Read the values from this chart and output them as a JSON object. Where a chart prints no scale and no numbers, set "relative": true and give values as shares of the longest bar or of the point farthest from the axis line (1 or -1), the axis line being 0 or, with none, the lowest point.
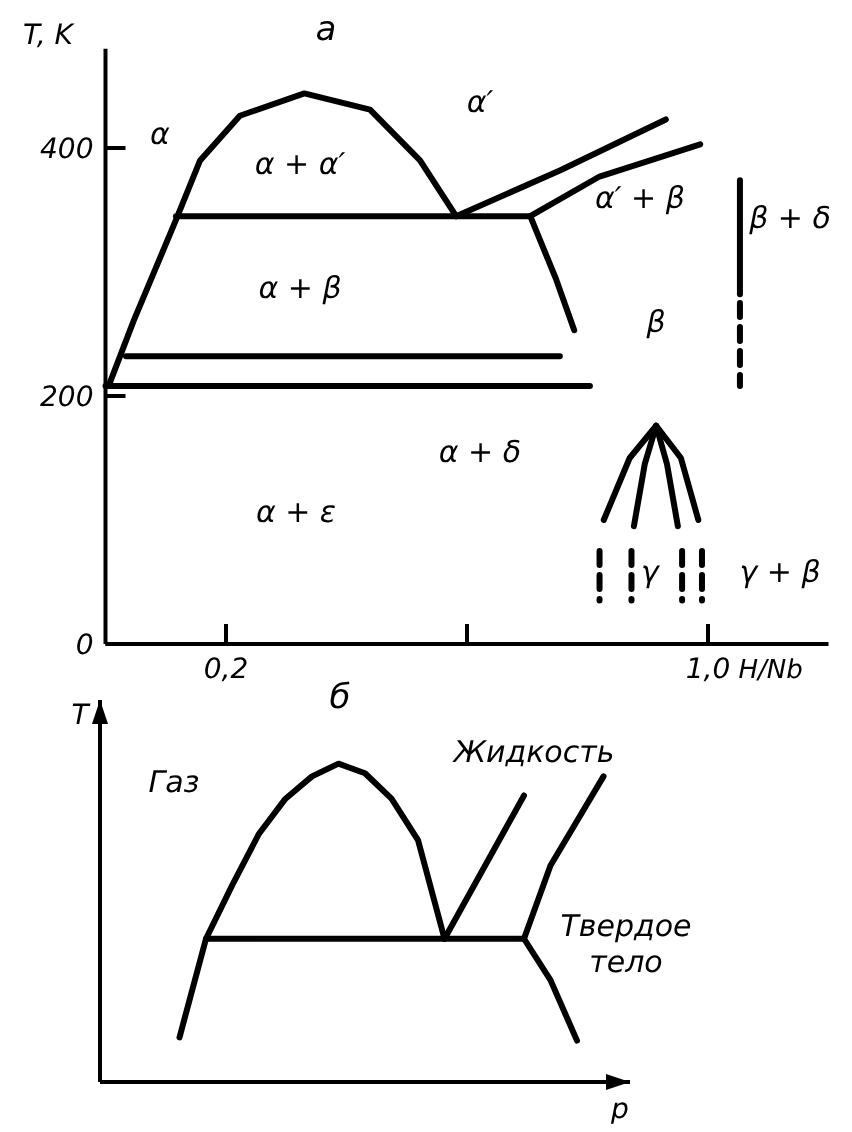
{
  "chart_data": [
    {
      "type": "line",
      "title": "а",
      "xlabel": "H/Nb",
      "ylabel": "T, K",
      "xlim": [
        0,
        1.2
      ],
      "ylim": [
        0,
        480
      ],
      "xticks": [
        {
          "value": 0.2,
          "label": "0,2"
        },
        {
          "value": 0.6,
          "label": null
        },
        {
          "value": 1.0,
          "label": "1,0"
        }
      ],
      "yticks": [
        0,
        200,
        400
      ],
      "marker": "none",
      "series": [
        {
          "color": "#000000",
          "line_style": "solid",
          "x": [
            0.0075,
            0.047,
            0.117,
            0.157,
            0.223,
            0.33,
            0.439,
            0.522,
            0.582
          ],
          "values": [
            211,
            261,
            342,
            390,
            426,
            444,
            431,
            390,
            345
          ]
        },
        {
          "color": "#000000",
          "line_style": "solid",
          "x": [
            0.117,
            0.705
          ],
          "values": [
            345,
            345
          ]
        },
        {
          "color": "#000000",
          "line_style": "solid",
          "x": [
            0.582,
            0.755,
            0.93
          ],
          "values": [
            345,
            382,
            423
          ]
        },
        {
          "color": "#000000",
          "line_style": "solid",
          "x": [
            0.705,
            0.82,
            0.987
          ],
          "values": [
            345,
            377,
            403
          ]
        },
        {
          "color": "#000000",
          "line_style": "solid",
          "x": [
            0.705,
            0.748,
            0.778
          ],
          "values": [
            345,
            294,
            253
          ]
        },
        {
          "color": "#000000",
          "line_style": "solid",
          "x": [
            0.034,
            0.754
          ],
          "values": [
            232,
            232
          ]
        },
        {
          "color": "#000000",
          "line_style": "solid",
          "x": [
            0,
            0.804
          ],
          "values": [
            208,
            208
          ]
        },
        {
          "color": "#000000",
          "line_style": "solid",
          "x": [
            1.053,
            1.053
          ],
          "values": [
            374,
            282
          ]
        },
        {
          "color": "#000000",
          "line_style": "dashed",
          "x": [
            1.053,
            1.053
          ],
          "values": [
            275,
            208
          ]
        },
        {
          "color": "#000000",
          "line_style": "solid",
          "x": [
            0.827,
            0.87,
            0.914,
            0.955,
            0.984
          ],
          "values": [
            100,
            150,
            176,
            150,
            100
          ]
        },
        {
          "color": "#000000",
          "line_style": "solid",
          "x": [
            0.877,
            0.895,
            0.914
          ],
          "values": [
            95,
            145,
            176
          ]
        },
        {
          "color": "#000000",
          "line_style": "solid",
          "x": [
            0.914,
            0.932,
            0.95
          ],
          "values": [
            176,
            145,
            95
          ]
        },
        {
          "color": "#000000",
          "line_style": "dashed",
          "x": [
            0.82,
            0.82
          ],
          "values": [
            75,
            35
          ]
        },
        {
          "color": "#000000",
          "line_style": "dashed",
          "x": [
            0.873,
            0.873
          ],
          "values": [
            75,
            35
          ]
        },
        {
          "color": "#000000",
          "line_style": "dashed",
          "x": [
            0.957,
            0.957
          ],
          "values": [
            75,
            35
          ]
        },
        {
          "color": "#000000",
          "line_style": "dashed",
          "x": [
            0.99,
            0.99
          ],
          "values": [
            75,
            35
          ]
        }
      ],
      "annotations": [
        "α",
        "α + α′",
        "α′",
        "α′ + β",
        "β + δ",
        "β",
        "α + β",
        "α + δ",
        "α + ε",
        "γ",
        "γ + β"
      ]
    },
    {
      "type": "line",
      "title": "б",
      "xlabel": "p",
      "ylabel": "T",
      "relative": true,
      "marker": "none",
      "categories": [
        null,
        null,
        null,
        null,
        null,
        null,
        null,
        null,
        null,
        null,
        null,
        null,
        null,
        null,
        null,
        null,
        null,
        null,
        null,
        null
      ],
      "series": [
        {
          "color": "#000000",
          "line_style": "solid",
          "values": [
            null,
            null,
            0.14,
            0.45,
            0.62,
            0.78,
            0.89,
            0.96,
            1.0,
            0.97,
            0.89,
            0.76,
            0.45,
            null,
            null,
            null,
            null,
            null,
            null,
            null
          ]
        },
        {
          "color": "#000000",
          "line_style": "solid",
          "values": [
            null,
            null,
            null,
            0.45,
            0.45,
            0.45,
            0.45,
            0.45,
            0.45,
            0.45,
            0.45,
            0.45,
            0.45,
            0.45,
            0.45,
            0.45,
            null,
            null,
            null,
            null
          ]
        },
        {
          "color": "#000000",
          "line_style": "solid",
          "values": [
            null,
            null,
            null,
            null,
            null,
            null,
            null,
            null,
            null,
            null,
            null,
            null,
            0.45,
            0.6,
            0.75,
            0.9,
            null,
            null,
            null,
            null
          ]
        },
        {
          "color": "#000000",
          "line_style": "solid",
          "values": [
            null,
            null,
            null,
            null,
            null,
            null,
            null,
            null,
            null,
            null,
            null,
            null,
            null,
            null,
            null,
            0.45,
            0.68,
            0.82,
            0.96,
            null
          ]
        },
        {
          "color": "#000000",
          "line_style": "solid",
          "values": [
            null,
            null,
            null,
            null,
            null,
            null,
            null,
            null,
            null,
            null,
            null,
            null,
            null,
            null,
            null,
            0.45,
            0.32,
            0.13,
            null,
            null
          ]
        }
      ],
      "annotations": [
        "Газ",
        "Жидкость",
        "Твердое тело"
      ]
    }
  ]
}
